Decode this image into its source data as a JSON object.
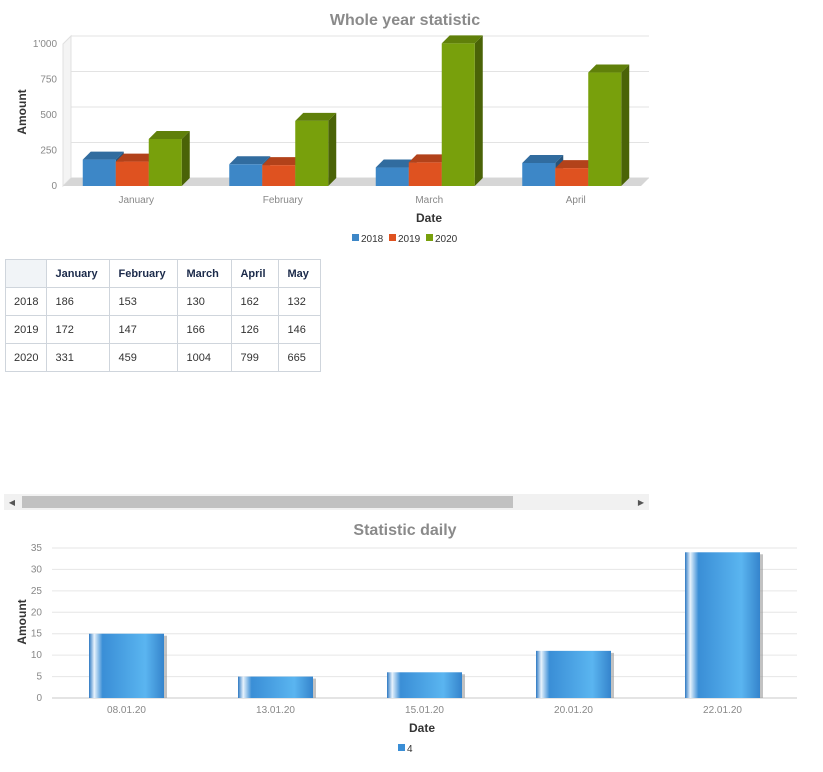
{
  "chart_data": [
    {
      "type": "bar",
      "title": "Whole year statistic",
      "xlabel": "Date",
      "ylabel": "Amount",
      "categories": [
        "January",
        "February",
        "March",
        "April"
      ],
      "ylim": [
        0,
        1000
      ],
      "yticks": [
        "0",
        "250",
        "500",
        "750",
        "1'000"
      ],
      "grid": true,
      "legend": "bottom-center",
      "series": [
        {
          "name": "2018",
          "values": [
            186,
            153,
            130,
            162
          ],
          "color": "#3d87c7"
        },
        {
          "name": "2019",
          "values": [
            172,
            147,
            166,
            126
          ],
          "color": "#df5220"
        },
        {
          "name": "2020",
          "values": [
            331,
            459,
            1004,
            799
          ],
          "color": "#78a00c"
        }
      ]
    },
    {
      "type": "bar",
      "title": "Statistic daily",
      "xlabel": "Date",
      "ylabel": "Amount",
      "categories": [
        "08.01.20",
        "13.01.20",
        "15.01.20",
        "20.01.20",
        "22.01.20"
      ],
      "ylim": [
        0,
        35
      ],
      "yticks": [
        "0",
        "5",
        "10",
        "15",
        "20",
        "25",
        "30",
        "35"
      ],
      "grid": true,
      "legend": "bottom-center",
      "series": [
        {
          "name": "4",
          "values": [
            15,
            5,
            6,
            11,
            34
          ],
          "color": "#3a8ed6"
        }
      ]
    }
  ],
  "table": {
    "headers": [
      "",
      "January",
      "February",
      "March",
      "April",
      "May"
    ],
    "rows": [
      [
        "2018",
        "186",
        "153",
        "130",
        "162",
        "132"
      ],
      [
        "2019",
        "172",
        "147",
        "166",
        "126",
        "146"
      ],
      [
        "2020",
        "331",
        "459",
        "1004",
        "799",
        "665"
      ]
    ]
  },
  "scrollbar": {
    "left_icon": "triangle-left-icon",
    "right_icon": "triangle-right-icon",
    "left_glyph": "◀",
    "right_glyph": "▶"
  }
}
